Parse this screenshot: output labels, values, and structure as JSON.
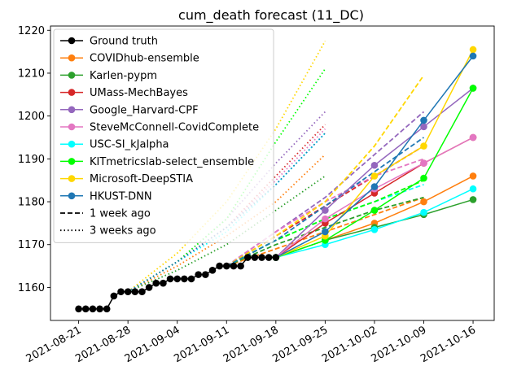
{
  "chart_data": {
    "type": "line",
    "title": "cum_death forecast (11_DC)",
    "xlabel": "",
    "ylabel": "",
    "x_range": [
      "2021-08-17",
      "2021-10-19"
    ],
    "ylim": [
      1152.3,
      1221
    ],
    "x_ticks": [
      "2021-08-21",
      "2021-08-28",
      "2021-09-04",
      "2021-09-11",
      "2021-09-18",
      "2021-09-25",
      "2021-10-02",
      "2021-10-09",
      "2021-10-16"
    ],
    "y_ticks": [
      1160,
      1170,
      1180,
      1190,
      1200,
      1210,
      1220
    ],
    "grid": false,
    "legend_position": "upper-left",
    "ground_truth": {
      "name": "Ground truth",
      "color": "#000000",
      "x": [
        "2021-08-21",
        "2021-08-22",
        "2021-08-23",
        "2021-08-24",
        "2021-08-25",
        "2021-08-26",
        "2021-08-27",
        "2021-08-28",
        "2021-08-29",
        "2021-08-30",
        "2021-08-31",
        "2021-09-01",
        "2021-09-02",
        "2021-09-03",
        "2021-09-04",
        "2021-09-05",
        "2021-09-06",
        "2021-09-07",
        "2021-09-08",
        "2021-09-09",
        "2021-09-10",
        "2021-09-11",
        "2021-09-12",
        "2021-09-13",
        "2021-09-14",
        "2021-09-15",
        "2021-09-16",
        "2021-09-17",
        "2021-09-18"
      ],
      "y": [
        1155,
        1155,
        1155,
        1155,
        1155,
        1158,
        1159,
        1159,
        1159,
        1159,
        1160,
        1161,
        1161,
        1162,
        1162,
        1162,
        1162,
        1163,
        1163,
        1164,
        1165,
        1165,
        1165,
        1165,
        1167,
        1167,
        1167,
        1167,
        1167
      ]
    },
    "series": [
      {
        "name": "COVIDhub-ensemble",
        "color": "#ff7f0e",
        "current": {
          "x": [
            "2021-09-18",
            "2021-09-25",
            "2021-10-02",
            "2021-10-09",
            "2021-10-16"
          ],
          "y": [
            1167,
            1171,
            1175,
            1180,
            1186
          ]
        },
        "one_week_ago": {
          "x": [
            "2021-09-11",
            "2021-09-18",
            "2021-09-25",
            "2021-10-02",
            "2021-10-09"
          ],
          "y": [
            1165,
            1169,
            1173,
            1177,
            1181
          ]
        },
        "three_weeks_ago": {
          "x": [
            "2021-08-28",
            "2021-09-04",
            "2021-09-11",
            "2021-09-18",
            "2021-09-25"
          ],
          "y": [
            1159,
            1165,
            1172,
            1180,
            1191
          ]
        }
      },
      {
        "name": "Karlen-pypm",
        "color": "#2ca02c",
        "current": {
          "x": [
            "2021-09-18",
            "2021-09-25",
            "2021-10-02",
            "2021-10-09",
            "2021-10-16"
          ],
          "y": [
            1167,
            1171,
            1174,
            1177,
            1180.5
          ]
        },
        "one_week_ago": {
          "x": [
            "2021-09-11",
            "2021-09-18",
            "2021-09-25",
            "2021-10-02",
            "2021-10-09"
          ],
          "y": [
            1165,
            1170,
            1174,
            1178,
            1181
          ]
        },
        "three_weeks_ago": {
          "x": [
            "2021-08-28",
            "2021-09-04",
            "2021-09-11",
            "2021-09-18",
            "2021-09-25"
          ],
          "y": [
            1159,
            1164,
            1170,
            1178,
            1186
          ]
        }
      },
      {
        "name": "UMass-MechBayes",
        "color": "#d62728",
        "current": {
          "x": [
            "2021-09-18",
            "2021-09-25",
            "2021-10-02",
            "2021-10-09",
            "2021-10-16"
          ],
          "y": [
            1167,
            1175,
            1182,
            1189,
            1195
          ]
        },
        "one_week_ago": {
          "x": [
            "2021-09-11",
            "2021-09-18",
            "2021-09-25",
            "2021-10-02",
            "2021-10-09"
          ],
          "y": [
            1165,
            1172,
            1179,
            1186,
            1193
          ]
        },
        "three_weeks_ago": {
          "x": [
            "2021-08-28",
            "2021-09-04",
            "2021-09-11",
            "2021-09-18",
            "2021-09-25"
          ],
          "y": [
            1159,
            1166,
            1174,
            1186,
            1198
          ]
        }
      },
      {
        "name": "Google_Harvard-CPF",
        "color": "#9467bd",
        "current": {
          "x": [
            "2021-09-18",
            "2021-09-25",
            "2021-10-02",
            "2021-10-09",
            "2021-10-16"
          ],
          "y": [
            1167,
            1178,
            1188.5,
            1197.5,
            1206.5
          ]
        },
        "one_week_ago": {
          "x": [
            "2021-09-11",
            "2021-09-18",
            "2021-09-25",
            "2021-10-02",
            "2021-10-09"
          ],
          "y": [
            1165,
            1173,
            1181,
            1191,
            1201
          ]
        },
        "three_weeks_ago": {
          "x": [
            "2021-08-28",
            "2021-09-04",
            "2021-09-11",
            "2021-09-18",
            "2021-09-25"
          ],
          "y": [
            1159,
            1166,
            1176,
            1189,
            1201
          ]
        }
      },
      {
        "name": "SteveMcConnell-CovidComplete",
        "color": "#e377c2",
        "current": {
          "x": [
            "2021-09-18",
            "2021-09-25",
            "2021-10-02",
            "2021-10-09",
            "2021-10-16"
          ],
          "y": [
            1167,
            1176,
            1183,
            1189,
            1195
          ]
        },
        "one_week_ago": {
          "x": [
            "2021-09-11",
            "2021-09-18",
            "2021-09-25",
            "2021-10-02",
            "2021-10-09"
          ],
          "y": [
            1165,
            1173,
            1180,
            1186,
            1190
          ]
        },
        "three_weeks_ago": {
          "x": [
            "2021-08-28",
            "2021-09-04",
            "2021-09-11",
            "2021-09-18",
            "2021-09-25"
          ],
          "y": [
            1159,
            1166,
            1174,
            1185,
            1197
          ]
        }
      },
      {
        "name": "USC-SI_kJalpha",
        "color": "#00ffff",
        "current": {
          "x": [
            "2021-09-18",
            "2021-09-25",
            "2021-10-02",
            "2021-10-09",
            "2021-10-16"
          ],
          "y": [
            1167,
            1170,
            1173.5,
            1177.5,
            1183
          ]
        },
        "one_week_ago": {
          "x": [
            "2021-09-11",
            "2021-09-18",
            "2021-09-25",
            "2021-10-02",
            "2021-10-09"
          ],
          "y": [
            1165,
            1171,
            1176,
            1180,
            1184
          ]
        },
        "three_weeks_ago": {
          "x": [
            "2021-08-28",
            "2021-09-04",
            "2021-09-11",
            "2021-09-18",
            "2021-09-25"
          ],
          "y": [
            1159,
            1166,
            1173,
            1184,
            1196
          ]
        }
      },
      {
        "name": "KITmetricslab-select_ensemble",
        "color": "#00ff00",
        "current": {
          "x": [
            "2021-09-18",
            "2021-09-25",
            "2021-10-02",
            "2021-10-09",
            "2021-10-16"
          ],
          "y": [
            1167,
            1171,
            1178,
            1185.5,
            1206.5
          ]
        },
        "one_week_ago": {
          "x": [
            "2021-09-11",
            "2021-09-18",
            "2021-09-25",
            "2021-10-02",
            "2021-10-09"
          ],
          "y": [
            1165,
            1171,
            1176,
            1180,
            1185
          ]
        },
        "three_weeks_ago": {
          "x": [
            "2021-08-28",
            "2021-09-04",
            "2021-09-11",
            "2021-09-18",
            "2021-09-25"
          ],
          "y": [
            1159,
            1166,
            1176,
            1194,
            1211
          ]
        }
      },
      {
        "name": "Microsoft-DeepSTIA",
        "color": "#ffd700",
        "current": {
          "x": [
            "2021-09-18",
            "2021-09-25",
            "2021-10-02",
            "2021-10-09",
            "2021-10-16"
          ],
          "y": [
            1167,
            1172,
            1186,
            1193,
            1215.5
          ]
        },
        "one_week_ago": {
          "x": [
            "2021-09-11",
            "2021-09-18",
            "2021-09-25",
            "2021-10-02",
            "2021-10-09"
          ],
          "y": [
            1165,
            1172,
            1180,
            1193,
            1209.5
          ]
        },
        "three_weeks_ago": {
          "x": [
            "2021-08-28",
            "2021-09-04",
            "2021-09-11",
            "2021-09-18",
            "2021-09-25"
          ],
          "y": [
            1159,
            1168,
            1180,
            1197,
            1217.5
          ]
        }
      },
      {
        "name": "HKUST-DNN",
        "color": "#1f77b4",
        "current": {
          "x": [
            "2021-09-18",
            "2021-09-25",
            "2021-10-02",
            "2021-10-09",
            "2021-10-16"
          ],
          "y": [
            1167,
            1173,
            1183.5,
            1199,
            1214
          ]
        },
        "one_week_ago": {
          "x": [
            "2021-09-11",
            "2021-09-18",
            "2021-09-25",
            "2021-10-02",
            "2021-10-09"
          ],
          "y": [
            1165,
            1171,
            1179,
            1187,
            1195
          ]
        },
        "three_weeks_ago": {
          "x": [
            "2021-08-28",
            "2021-09-04",
            "2021-09-11",
            "2021-09-18",
            "2021-09-25"
          ],
          "y": [
            1159,
            1166,
            1174,
            1184,
            1196
          ]
        }
      }
    ],
    "legend": {
      "entries": [
        "Ground truth",
        "COVIDhub-ensemble",
        "Karlen-pypm",
        "UMass-MechBayes",
        "Google_Harvard-CPF",
        "SteveMcConnell-CovidComplete",
        "USC-SI_kJalpha",
        "KITmetricslab-select_ensemble",
        "Microsoft-DeepSTIA",
        "HKUST-DNN"
      ],
      "style_entries": {
        "one_week_ago": "1 week ago",
        "three_weeks_ago": "3 weeks ago"
      }
    }
  }
}
